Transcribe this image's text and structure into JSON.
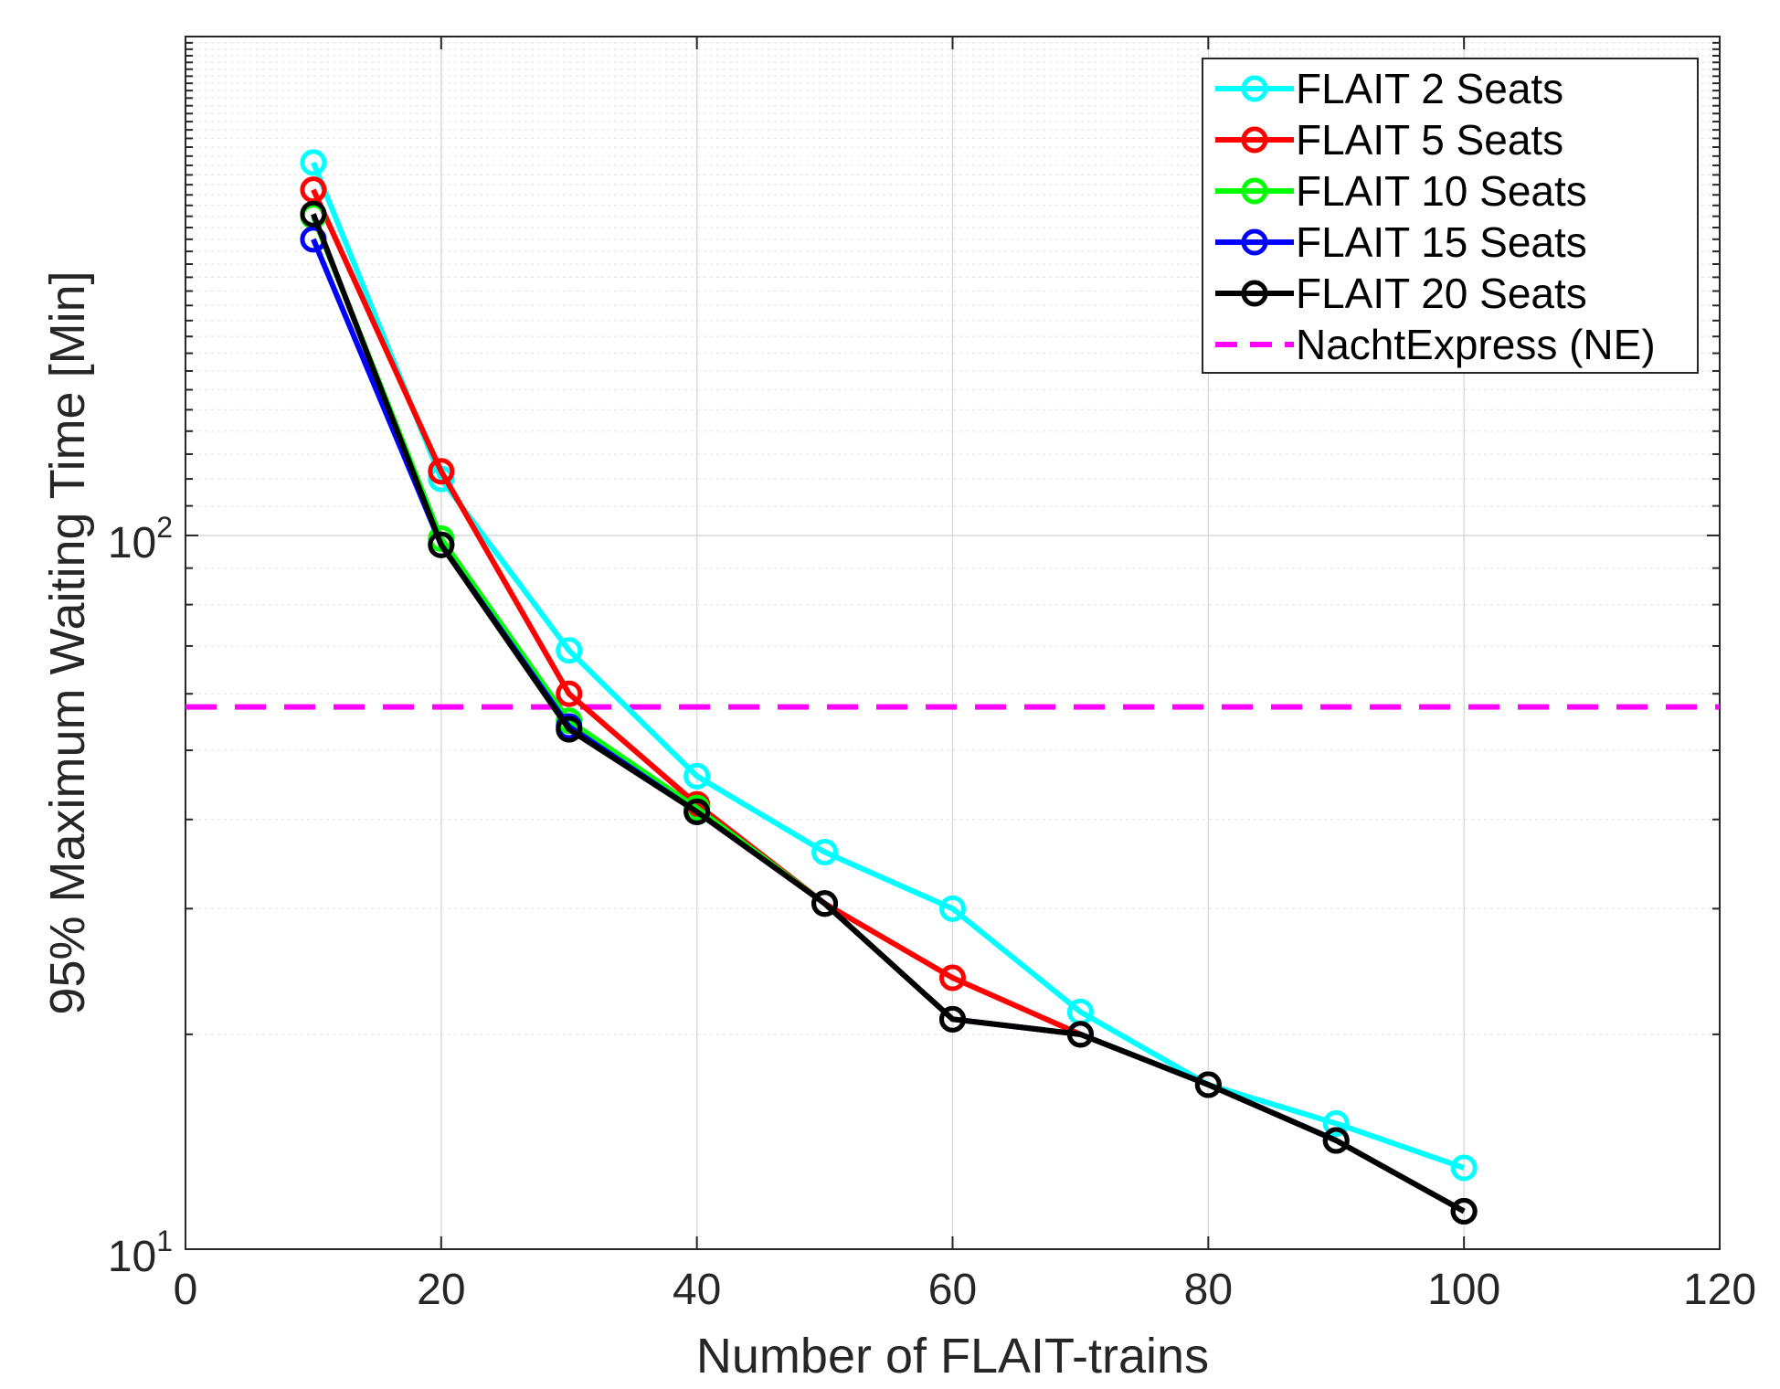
{
  "chart_data": {
    "type": "line",
    "title": "",
    "xlabel": "Number of FLAIT-trains",
    "ylabel": "95% Maximum Waiting Time [Min]",
    "xlim": [
      0,
      120
    ],
    "ylim": [
      10,
      500
    ],
    "yscale": "log",
    "grid": true,
    "legend_position": "top-right",
    "xticks": [
      0,
      20,
      40,
      60,
      80,
      100,
      120
    ],
    "xtick_labels": [
      "0",
      "20",
      "40",
      "60",
      "80",
      "100",
      "120"
    ],
    "yticks": [
      {
        "value": 10,
        "base": "10",
        "exp": "1"
      },
      {
        "value": 100,
        "base": "10",
        "exp": "2"
      }
    ],
    "x": [
      10,
      20,
      30,
      40,
      50,
      60,
      70,
      80,
      90,
      100
    ],
    "series": [
      {
        "name": "FLAIT 2 Seats",
        "color": "#00ffff",
        "values": [
          333,
          120,
          69,
          46,
          36,
          30,
          21.5,
          17,
          15,
          13
        ]
      },
      {
        "name": "FLAIT 5 Seats",
        "color": "#ff0000",
        "values": [
          305,
          123,
          60,
          42,
          30.5,
          24,
          20,
          17,
          14.2,
          11.3
        ]
      },
      {
        "name": "FLAIT 10 Seats",
        "color": "#00ff00",
        "values": [
          280,
          99,
          55,
          41.5,
          30.5,
          21,
          20,
          17,
          14.2,
          11.3
        ]
      },
      {
        "name": "FLAIT 15 Seats",
        "color": "#0000ff",
        "values": [
          260,
          97,
          54,
          41,
          30.5,
          21,
          20,
          17,
          14.2,
          11.3
        ]
      },
      {
        "name": "FLAIT 20 Seats",
        "color": "#000000",
        "values": [
          282,
          97,
          53.5,
          41,
          30.5,
          21,
          20,
          17,
          14.2,
          11.3
        ]
      }
    ],
    "reference_line": {
      "name": "NachtExpress (NE)",
      "color": "#ff00ff",
      "value": 57.5
    }
  }
}
